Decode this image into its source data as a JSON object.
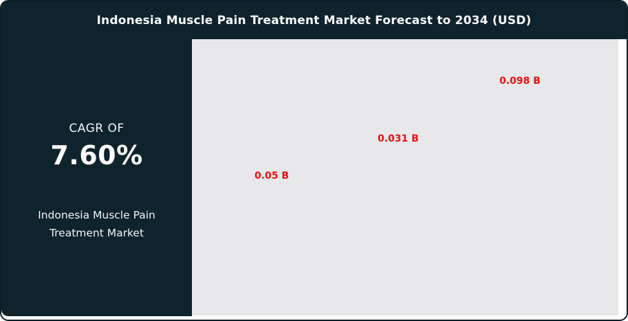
{
  "header": {
    "title": "Indonesia Muscle Pain Treatment Market Forecast to 2034 (USD)"
  },
  "sidebar": {
    "cagr_label": "CAGR OF",
    "cagr_value": "7.60%",
    "market_name": "Indonesia Muscle Pain Treatment Market"
  },
  "chart_data": {
    "type": "bar",
    "title": "Indonesia Muscle Pain Treatment Market Forecast to 2034 (USD)",
    "value_suffix": " B",
    "points": [
      {
        "label": "0.05 B",
        "value": 0.05
      },
      {
        "label": "0.031 B",
        "value": 0.031
      },
      {
        "label": "0.098 B",
        "value": 0.098
      }
    ],
    "grid": false,
    "axes_visible": false,
    "legend_position": "none",
    "label_color": "#E51111",
    "plot_background": "#E8E8EA"
  },
  "colors": {
    "dark_panel": "#0F232C",
    "border": "#0C1E26",
    "accent_red": "#E51111",
    "plot_bg": "#E8E8EA",
    "text_light": "#F2F5F6"
  }
}
